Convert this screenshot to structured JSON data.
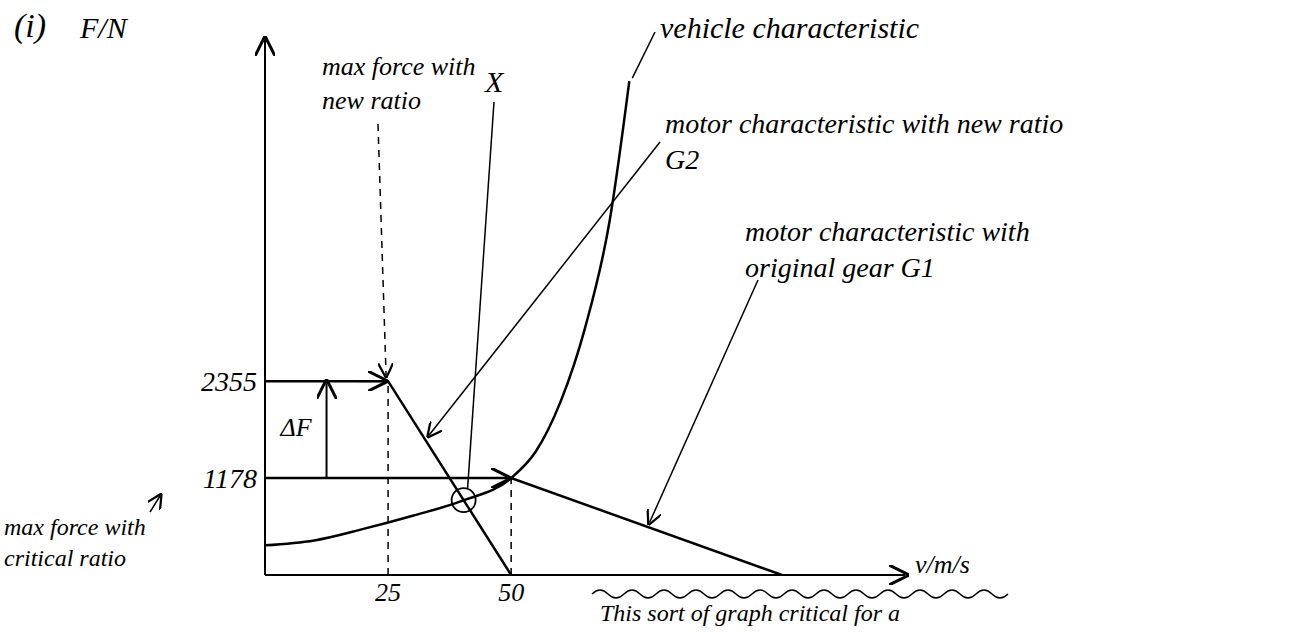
{
  "chart_data": {
    "type": "line",
    "title": "(i)",
    "x_label": "v/m/s",
    "y_label": "F/N",
    "xlim": [
      0,
      130
    ],
    "ylim": [
      0,
      6500
    ],
    "xticks": [
      25,
      50
    ],
    "yticks": [
      1178,
      2355
    ],
    "grid": false,
    "series": [
      {
        "name": "vehicle characteristic",
        "color": "#000000",
        "marker": "none",
        "line_style": "solid",
        "x": [
          0,
          10,
          20,
          30,
          40,
          50,
          55,
          60,
          65,
          70,
          74
        ],
        "values": [
          360,
          420,
          560,
          720,
          900,
          1178,
          1500,
          2100,
          3000,
          4300,
          6000
        ]
      },
      {
        "name": "motor characteristic with new ratio G2",
        "color": "#000000",
        "marker": "none",
        "line_style": "solid",
        "x": [
          0,
          25,
          50
        ],
        "values": [
          2355,
          2355,
          0
        ]
      },
      {
        "name": "motor characteristic with original gear G1",
        "color": "#000000",
        "marker": "none",
        "line_style": "solid",
        "x": [
          0,
          50,
          105
        ],
        "values": [
          1178,
          1178,
          0
        ]
      }
    ],
    "annotations": [
      "max force with new ratio",
      "X",
      "max force with critical ratio",
      "ΔF",
      "This sort of graph critical for a"
    ]
  }
}
